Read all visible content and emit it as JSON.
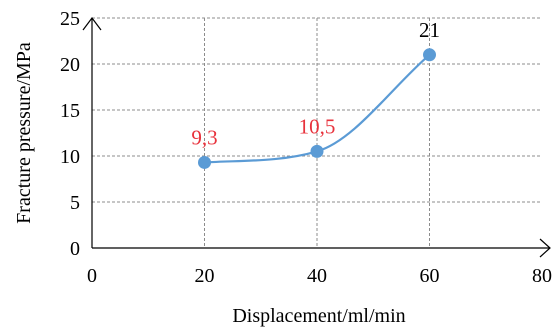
{
  "chart_data": {
    "type": "line",
    "title": "",
    "xlabel": "Displacement/ml/min",
    "ylabel": "Fracture pressure/MPa",
    "xlim": [
      0,
      80
    ],
    "ylim": [
      0,
      25
    ],
    "x_ticks": [
      "0",
      "20",
      "40",
      "60",
      "80"
    ],
    "y_ticks": [
      "0",
      "5",
      "10",
      "15",
      "20",
      "25"
    ],
    "grid": true,
    "series": [
      {
        "x": [
          20,
          40,
          60
        ],
        "y": [
          9.3,
          10.5,
          21
        ],
        "labels": [
          "9,3",
          "10,5",
          "21"
        ],
        "label_colors": [
          "#e8323c",
          "#e8323c",
          "#000000"
        ],
        "color": "#5b9bd5"
      }
    ]
  }
}
